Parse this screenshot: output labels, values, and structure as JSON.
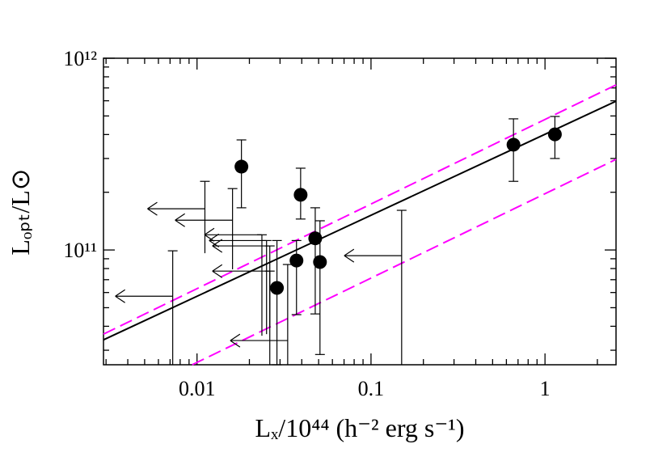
{
  "chart_data": {
    "type": "scatter",
    "xlabel": "Lₓ/10⁴⁴ (h⁻² erg s⁻¹)",
    "ylabel": "Lₒₚₜ/L⊙",
    "xscale": "log",
    "yscale": "log",
    "xlim": [
      0.0029,
      2.56
    ],
    "ylim": [
      25200000000.0,
      1000000000000.0
    ],
    "xticks": [
      0.01,
      0.1,
      1
    ],
    "yticks": [
      {
        "value": 100000000000.0,
        "label": "10¹¹"
      },
      {
        "value": 1000000000000.0,
        "label": "10¹²"
      }
    ],
    "xminorticks": [
      0.003,
      0.004,
      0.005,
      0.006,
      0.007,
      0.008,
      0.009,
      0.02,
      0.03,
      0.04,
      0.05,
      0.06,
      0.07,
      0.08,
      0.09,
      0.2,
      0.3,
      0.4,
      0.5,
      0.6,
      0.7,
      0.8,
      0.9,
      2
    ],
    "yminorticks": [
      30000000000.0,
      40000000000.0,
      50000000000.0,
      60000000000.0,
      70000000000.0,
      80000000000.0,
      90000000000.0,
      200000000000.0,
      300000000000.0,
      400000000000.0,
      500000000000.0,
      600000000000.0,
      700000000000.0,
      800000000000.0,
      900000000000.0
    ],
    "points": {
      "color": "#000000",
      "x": [
        0.018,
        0.0288,
        0.0373,
        0.0394,
        0.0478,
        0.0509,
        0.659,
        1.14
      ],
      "y": [
        272000000000.0,
        63400000000.0,
        88100000000.0,
        194000000000.0,
        115000000000.0,
        86500000000.0,
        354000000000.0,
        401000000000.0
      ],
      "ylow": [
        166000000000.0,
        25200000000.0,
        46000000000.0,
        145000000000.0,
        46400000000.0,
        28500000000.0,
        228000000000.0,
        300000000000.0
      ],
      "yhigh": [
        375000000000.0,
        112000000000.0,
        112000000000.0,
        267000000000.0,
        166000000000.0,
        142000000000.0,
        483000000000.0,
        497000000000.0
      ]
    },
    "upper_limits": {
      "color": "#000000",
      "x": [
        0.00725,
        0.0111,
        0.016,
        0.0236,
        0.0251,
        0.0262,
        0.0262,
        0.0332,
        0.15
      ],
      "y": [
        57400000000.0,
        164000000000.0,
        143000000000.0,
        120000000000.0,
        112000000000.0,
        105000000000.0,
        77600000000.0,
        33700000000.0,
        93400000000.0
      ],
      "ylow": [
        25200000000.0,
        96200000000.0,
        79300000000.0,
        35700000000.0,
        36400000000.0,
        39400000000.0,
        25200000000.0,
        25200000000.0,
        25200000000.0
      ],
      "yhigh": [
        99000000000.0,
        228000000000.0,
        209000000000.0,
        120000000000.0,
        112000000000.0,
        105000000000.0,
        77600000000.0,
        84000000000.0,
        161000000000.0
      ]
    },
    "lines": [
      {
        "color": "#000000",
        "dash": false,
        "x": [
          0.0029,
          2.56
        ],
        "y": [
          34000000000.0,
          597000000000.0
        ]
      },
      {
        "color": "#ff00ff",
        "dash": true,
        "x": [
          0.0029,
          2.56
        ],
        "y": [
          36400000000.0,
          726000000000.0
        ]
      },
      {
        "color": "#ff00ff",
        "dash": true,
        "x": [
          0.00938,
          2.56
        ],
        "y": [
          25200000000.0,
          297000000000.0
        ]
      }
    ]
  }
}
